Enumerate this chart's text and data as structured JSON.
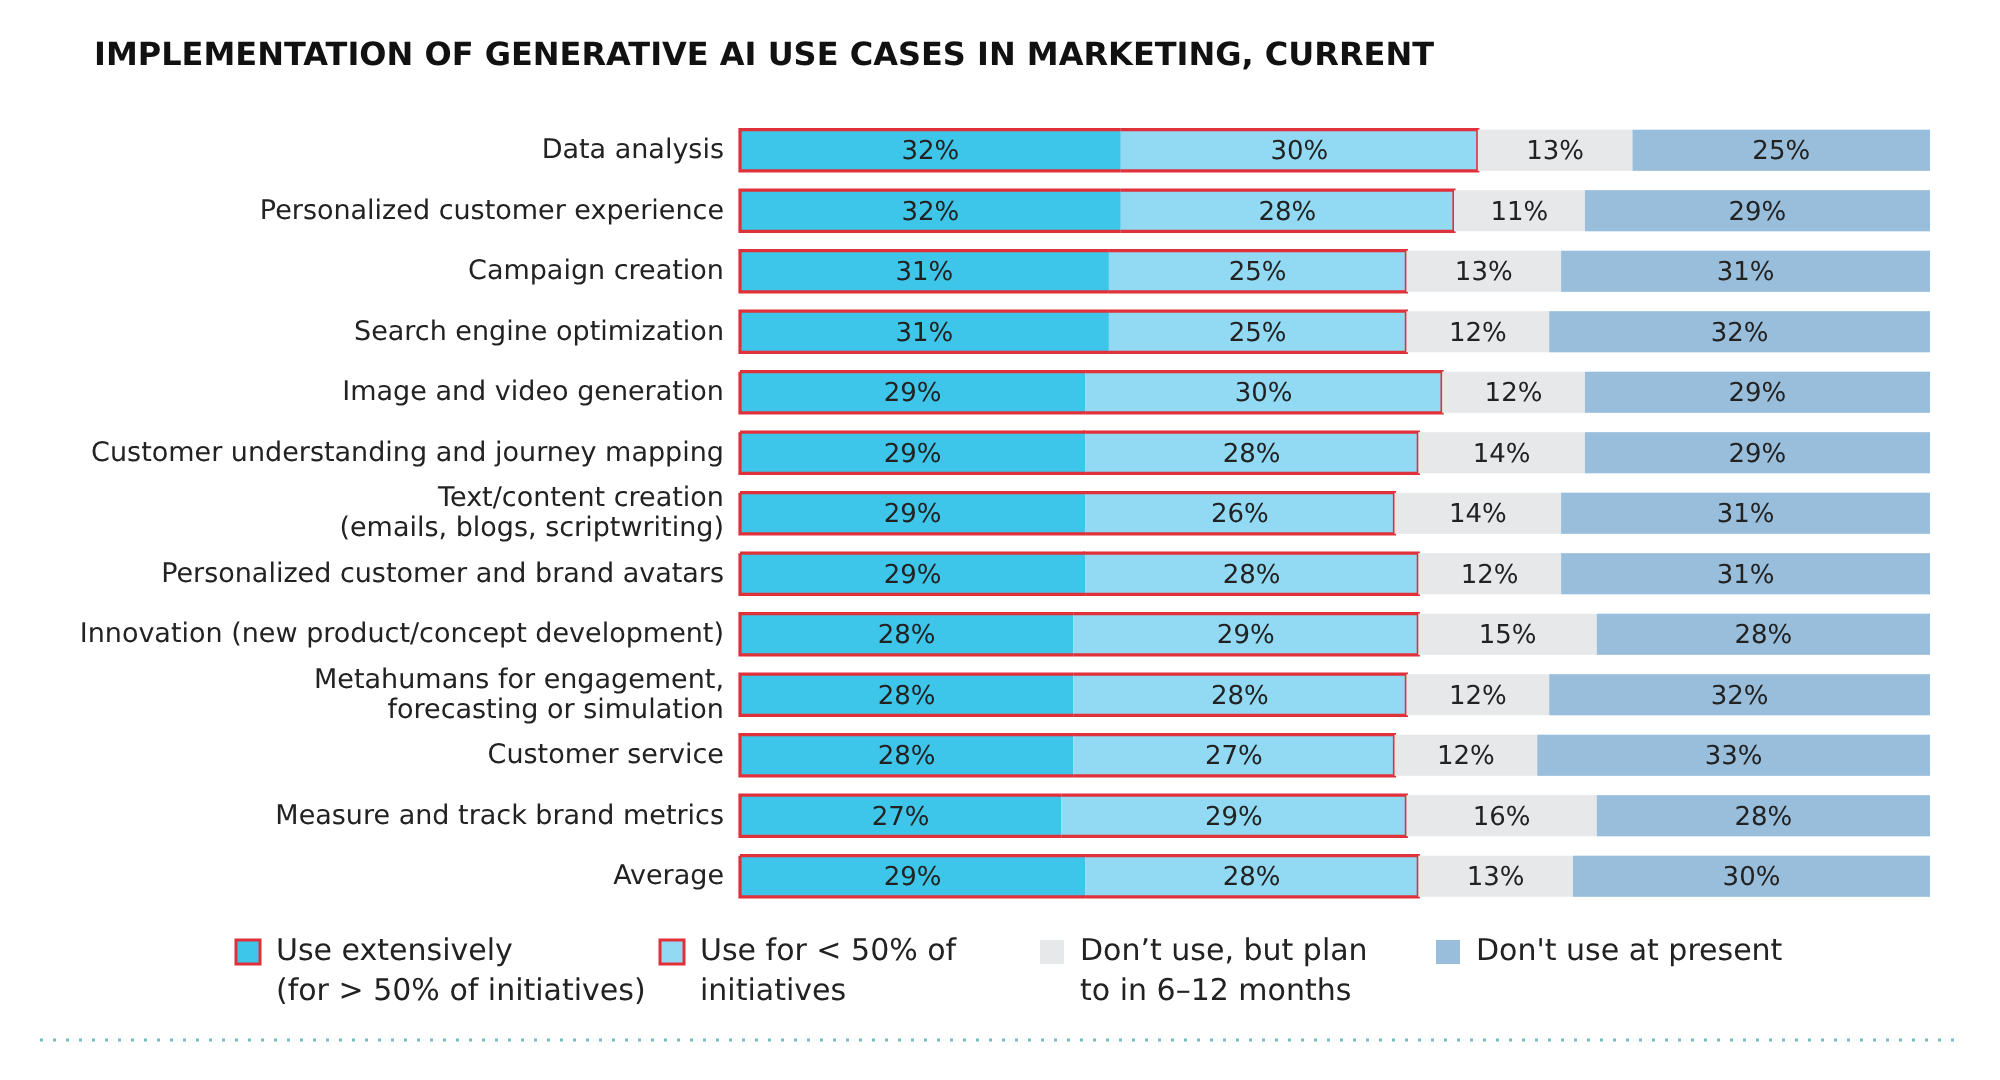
{
  "chart_data": {
    "type": "bar",
    "orientation": "horizontal",
    "stacked": true,
    "title": "IMPLEMENTATION OF GENERATIVE AI USE CASES IN MARKETING, CURRENT",
    "categories": [
      "Data analysis",
      "Personalized customer experience",
      "Campaign creation",
      "Search engine optimization",
      "Image and video generation",
      "Customer understanding and journey mapping",
      "Text/content creation\n(emails, blogs, scriptwriting)",
      "Personalized customer and brand avatars",
      "Innovation (new product/concept development)",
      "Metahumans for engagement,\nforecasting or simulation",
      "Customer service",
      "Measure and track brand metrics",
      "Average"
    ],
    "series": [
      {
        "name": "Use extensively\n(for > 50% of initiatives)",
        "color": "#3ec6ea",
        "values": [
          32,
          32,
          31,
          31,
          29,
          29,
          29,
          29,
          28,
          28,
          28,
          27,
          29
        ],
        "value_labels": [
          "32%",
          "32%",
          "31%",
          "31%",
          "29%",
          "29%",
          "29%",
          "29%",
          "28%",
          "28%",
          "28%",
          "27%",
          "29%"
        ]
      },
      {
        "name": "Use for < 50% of\ninitiatives",
        "color": "#92d9f3",
        "values": [
          30,
          28,
          25,
          25,
          30,
          28,
          26,
          28,
          29,
          28,
          27,
          29,
          28
        ],
        "value_labels": [
          "30%",
          "28%",
          "25%",
          "25%",
          "30%",
          "28%",
          "26%",
          "28%",
          "29%",
          "28%",
          "27%",
          "29%",
          "28%"
        ]
      },
      {
        "name": "Don’t use, but plan\nto in 6–12 months",
        "color": "#e6e8ea",
        "values": [
          13,
          11,
          13,
          12,
          12,
          14,
          14,
          12,
          15,
          12,
          12,
          16,
          13
        ],
        "value_labels": [
          "13%",
          "11%",
          "13%",
          "12%",
          "12%",
          "14%",
          "14%",
          "12%",
          "15%",
          "12%",
          "12%",
          "16%",
          "13%"
        ]
      },
      {
        "name": "Don't use at present",
        "color": "#98bedb",
        "values": [
          25,
          29,
          31,
          32,
          29,
          29,
          31,
          31,
          28,
          32,
          33,
          28,
          30
        ],
        "value_labels": [
          "25%",
          "29%",
          "31%",
          "32%",
          "29%",
          "29%",
          "31%",
          "31%",
          "28%",
          "32%",
          "33%",
          "28%",
          "30%"
        ]
      }
    ],
    "legend": "bottom"
  }
}
